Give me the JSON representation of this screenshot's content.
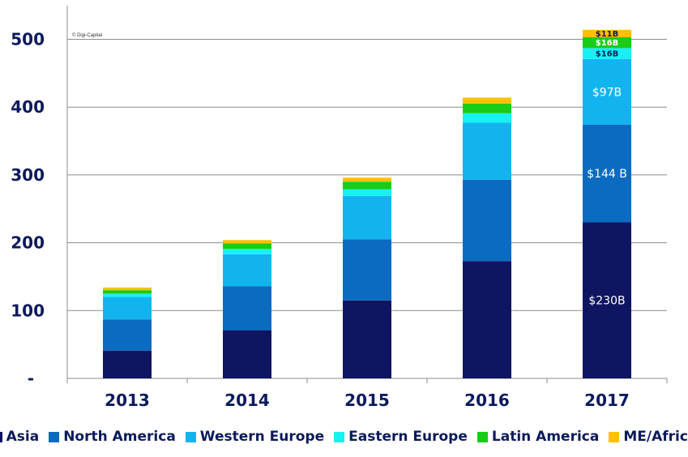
{
  "chart_data": {
    "type": "bar",
    "stacked": true,
    "categories": [
      "2013",
      "2014",
      "2015",
      "2016",
      "2017"
    ],
    "y_tick_labels": [
      "-",
      "100",
      "200",
      "300",
      "400",
      "500"
    ],
    "ylim": [
      0,
      500
    ],
    "grid": true,
    "legend_position": "bottom",
    "credit": "© Digi-Capital",
    "series": [
      {
        "name": "Asia",
        "color": "#0f1560",
        "values": [
          41,
          71,
          115,
          173,
          230
        ]
      },
      {
        "name": "North America",
        "color": "#0a6bc1",
        "values": [
          46,
          65,
          90,
          120,
          144
        ]
      },
      {
        "name": "Western Europe",
        "color": "#12b4f0",
        "values": [
          33,
          47,
          64,
          84,
          97
        ]
      },
      {
        "name": "Eastern Europe",
        "color": "#16f2f2",
        "values": [
          5,
          8,
          10,
          14,
          16
        ]
      },
      {
        "name": "Latin America",
        "color": "#18cc18",
        "values": [
          5,
          8,
          11,
          14,
          16
        ]
      },
      {
        "name": "ME/Africa",
        "color": "#ffc000",
        "values": [
          4,
          5,
          6,
          9,
          11
        ]
      }
    ],
    "annotations": [
      {
        "category": "2017",
        "series": "Asia",
        "text": "$230B"
      },
      {
        "category": "2017",
        "series": "North America",
        "text": "$144 B"
      },
      {
        "category": "2017",
        "series": "Western Europe",
        "text": "$97B"
      },
      {
        "category": "2017",
        "series": "Eastern Europe",
        "text": "$16B"
      },
      {
        "category": "2017",
        "series": "Latin America",
        "text": "$16B"
      },
      {
        "category": "2017",
        "series": "ME/Africa",
        "text": "$11B"
      }
    ]
  }
}
